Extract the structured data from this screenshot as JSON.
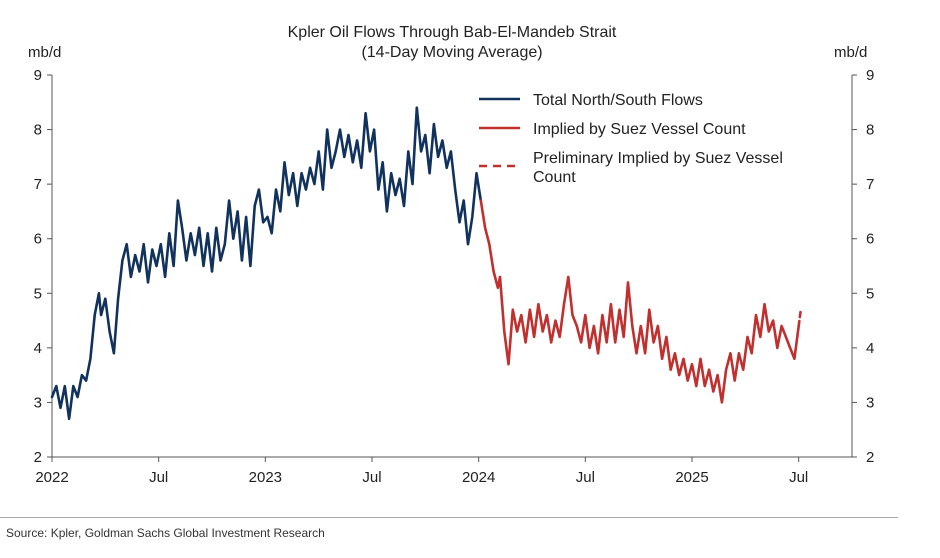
{
  "chart_data": {
    "type": "line",
    "title": "Kpler Oil Flows Through Bab-El-Mandeb Strait",
    "subtitle": "(14-Day Moving Average)",
    "ylabel_left": "mb/d",
    "ylabel_right": "mb/d",
    "ylim": [
      2,
      9
    ],
    "yticks": [
      2,
      3,
      4,
      5,
      6,
      7,
      8,
      9
    ],
    "xlim": [
      2022.0,
      2025.75
    ],
    "xticks": [
      {
        "label": "2022",
        "t": 2022.0
      },
      {
        "label": "Jul",
        "t": 2022.5
      },
      {
        "label": "2023",
        "t": 2023.0
      },
      {
        "label": "Jul",
        "t": 2023.5
      },
      {
        "label": "2024",
        "t": 2024.0
      },
      {
        "label": "Jul",
        "t": 2024.5
      },
      {
        "label": "2025",
        "t": 2025.0
      },
      {
        "label": "Jul",
        "t": 2025.5
      }
    ],
    "legend_position": "top-right",
    "series": [
      {
        "name": "Total North/South Flows",
        "color": "#12325e",
        "style": "solid",
        "points": [
          [
            2022.0,
            3.1
          ],
          [
            2022.02,
            3.3
          ],
          [
            2022.04,
            2.9
          ],
          [
            2022.06,
            3.3
          ],
          [
            2022.08,
            2.7
          ],
          [
            2022.1,
            3.3
          ],
          [
            2022.12,
            3.1
          ],
          [
            2022.14,
            3.5
          ],
          [
            2022.16,
            3.4
          ],
          [
            2022.18,
            3.8
          ],
          [
            2022.2,
            4.6
          ],
          [
            2022.22,
            5.0
          ],
          [
            2022.23,
            4.6
          ],
          [
            2022.25,
            4.9
          ],
          [
            2022.27,
            4.3
          ],
          [
            2022.29,
            3.9
          ],
          [
            2022.31,
            4.9
          ],
          [
            2022.33,
            5.6
          ],
          [
            2022.35,
            5.9
          ],
          [
            2022.37,
            5.3
          ],
          [
            2022.39,
            5.7
          ],
          [
            2022.41,
            5.4
          ],
          [
            2022.43,
            5.9
          ],
          [
            2022.45,
            5.2
          ],
          [
            2022.47,
            5.8
          ],
          [
            2022.49,
            5.5
          ],
          [
            2022.51,
            5.9
          ],
          [
            2022.53,
            5.3
          ],
          [
            2022.55,
            6.1
          ],
          [
            2022.57,
            5.5
          ],
          [
            2022.59,
            6.7
          ],
          [
            2022.61,
            6.2
          ],
          [
            2022.63,
            5.6
          ],
          [
            2022.65,
            6.1
          ],
          [
            2022.67,
            5.7
          ],
          [
            2022.69,
            6.2
          ],
          [
            2022.71,
            5.5
          ],
          [
            2022.73,
            6.1
          ],
          [
            2022.75,
            5.4
          ],
          [
            2022.77,
            6.2
          ],
          [
            2022.79,
            5.6
          ],
          [
            2022.81,
            5.9
          ],
          [
            2022.83,
            6.7
          ],
          [
            2022.85,
            6.0
          ],
          [
            2022.87,
            6.5
          ],
          [
            2022.89,
            5.6
          ],
          [
            2022.91,
            6.4
          ],
          [
            2022.93,
            5.5
          ],
          [
            2022.95,
            6.6
          ],
          [
            2022.97,
            6.9
          ],
          [
            2022.99,
            6.3
          ],
          [
            2023.01,
            6.4
          ],
          [
            2023.03,
            6.1
          ],
          [
            2023.05,
            6.9
          ],
          [
            2023.07,
            6.5
          ],
          [
            2023.09,
            7.4
          ],
          [
            2023.11,
            6.8
          ],
          [
            2023.13,
            7.2
          ],
          [
            2023.15,
            6.6
          ],
          [
            2023.17,
            7.2
          ],
          [
            2023.19,
            6.9
          ],
          [
            2023.21,
            7.3
          ],
          [
            2023.23,
            7.0
          ],
          [
            2023.25,
            7.6
          ],
          [
            2023.27,
            6.9
          ],
          [
            2023.29,
            8.0
          ],
          [
            2023.31,
            7.3
          ],
          [
            2023.33,
            7.6
          ],
          [
            2023.35,
            8.0
          ],
          [
            2023.37,
            7.5
          ],
          [
            2023.39,
            7.9
          ],
          [
            2023.41,
            7.4
          ],
          [
            2023.43,
            7.8
          ],
          [
            2023.45,
            7.3
          ],
          [
            2023.47,
            8.3
          ],
          [
            2023.49,
            7.6
          ],
          [
            2023.51,
            8.0
          ],
          [
            2023.53,
            6.9
          ],
          [
            2023.55,
            7.4
          ],
          [
            2023.57,
            6.5
          ],
          [
            2023.59,
            7.2
          ],
          [
            2023.61,
            6.8
          ],
          [
            2023.63,
            7.1
          ],
          [
            2023.65,
            6.6
          ],
          [
            2023.67,
            7.6
          ],
          [
            2023.69,
            7.0
          ],
          [
            2023.71,
            8.4
          ],
          [
            2023.73,
            7.6
          ],
          [
            2023.75,
            7.9
          ],
          [
            2023.77,
            7.2
          ],
          [
            2023.79,
            8.1
          ],
          [
            2023.81,
            7.5
          ],
          [
            2023.83,
            7.8
          ],
          [
            2023.85,
            7.3
          ],
          [
            2023.87,
            7.6
          ],
          [
            2023.89,
            6.9
          ],
          [
            2023.91,
            6.3
          ],
          [
            2023.93,
            6.7
          ],
          [
            2023.95,
            5.9
          ],
          [
            2023.97,
            6.4
          ],
          [
            2023.99,
            7.2
          ],
          [
            2024.01,
            6.7
          ]
        ]
      },
      {
        "name": "Implied by Suez Vessel Count",
        "color": "#c0302e",
        "style": "solid",
        "points": [
          [
            2024.01,
            6.7
          ],
          [
            2024.03,
            6.2
          ],
          [
            2024.05,
            5.9
          ],
          [
            2024.07,
            5.4
          ],
          [
            2024.09,
            5.1
          ],
          [
            2024.1,
            5.3
          ],
          [
            2024.12,
            4.3
          ],
          [
            2024.14,
            3.7
          ],
          [
            2024.16,
            4.7
          ],
          [
            2024.18,
            4.3
          ],
          [
            2024.2,
            4.6
          ],
          [
            2024.22,
            4.1
          ],
          [
            2024.24,
            4.7
          ],
          [
            2024.26,
            4.2
          ],
          [
            2024.28,
            4.8
          ],
          [
            2024.3,
            4.3
          ],
          [
            2024.32,
            4.6
          ],
          [
            2024.34,
            4.1
          ],
          [
            2024.36,
            4.5
          ],
          [
            2024.38,
            4.2
          ],
          [
            2024.4,
            4.8
          ],
          [
            2024.42,
            5.3
          ],
          [
            2024.44,
            4.6
          ],
          [
            2024.46,
            4.4
          ],
          [
            2024.48,
            4.1
          ],
          [
            2024.5,
            4.6
          ],
          [
            2024.52,
            4.0
          ],
          [
            2024.54,
            4.4
          ],
          [
            2024.56,
            3.9
          ],
          [
            2024.58,
            4.6
          ],
          [
            2024.6,
            4.1
          ],
          [
            2024.62,
            4.8
          ],
          [
            2024.64,
            4.1
          ],
          [
            2024.66,
            4.7
          ],
          [
            2024.68,
            4.2
          ],
          [
            2024.7,
            5.2
          ],
          [
            2024.72,
            4.4
          ],
          [
            2024.74,
            3.9
          ],
          [
            2024.76,
            4.4
          ],
          [
            2024.78,
            3.9
          ],
          [
            2024.8,
            4.7
          ],
          [
            2024.82,
            4.1
          ],
          [
            2024.84,
            4.4
          ],
          [
            2024.86,
            3.8
          ],
          [
            2024.88,
            4.2
          ],
          [
            2024.9,
            3.6
          ],
          [
            2024.92,
            3.9
          ],
          [
            2024.94,
            3.5
          ],
          [
            2024.96,
            3.8
          ],
          [
            2024.98,
            3.4
          ],
          [
            2025.0,
            3.7
          ],
          [
            2025.02,
            3.3
          ],
          [
            2025.04,
            3.8
          ],
          [
            2025.06,
            3.3
          ],
          [
            2025.08,
            3.6
          ],
          [
            2025.1,
            3.2
          ],
          [
            2025.12,
            3.5
          ],
          [
            2025.14,
            3.0
          ],
          [
            2025.16,
            3.6
          ],
          [
            2025.18,
            3.9
          ],
          [
            2025.2,
            3.4
          ],
          [
            2025.22,
            3.9
          ],
          [
            2025.24,
            3.6
          ],
          [
            2025.26,
            4.2
          ],
          [
            2025.28,
            3.9
          ],
          [
            2025.3,
            4.6
          ],
          [
            2025.32,
            4.2
          ],
          [
            2025.34,
            4.8
          ],
          [
            2025.36,
            4.3
          ],
          [
            2025.38,
            4.5
          ],
          [
            2025.4,
            4.0
          ],
          [
            2025.42,
            4.4
          ],
          [
            2025.44,
            4.2
          ],
          [
            2025.46,
            4.0
          ],
          [
            2025.48,
            3.8
          ],
          [
            2025.5,
            4.4
          ]
        ]
      },
      {
        "name": "Preliminary Implied by Suez Vessel Count",
        "color": "#c0302e",
        "style": "dashed",
        "points": [
          [
            2025.5,
            4.4
          ],
          [
            2025.51,
            4.7
          ]
        ]
      }
    ]
  },
  "source": "Source: Kpler, Goldman Sachs Global Investment Research"
}
